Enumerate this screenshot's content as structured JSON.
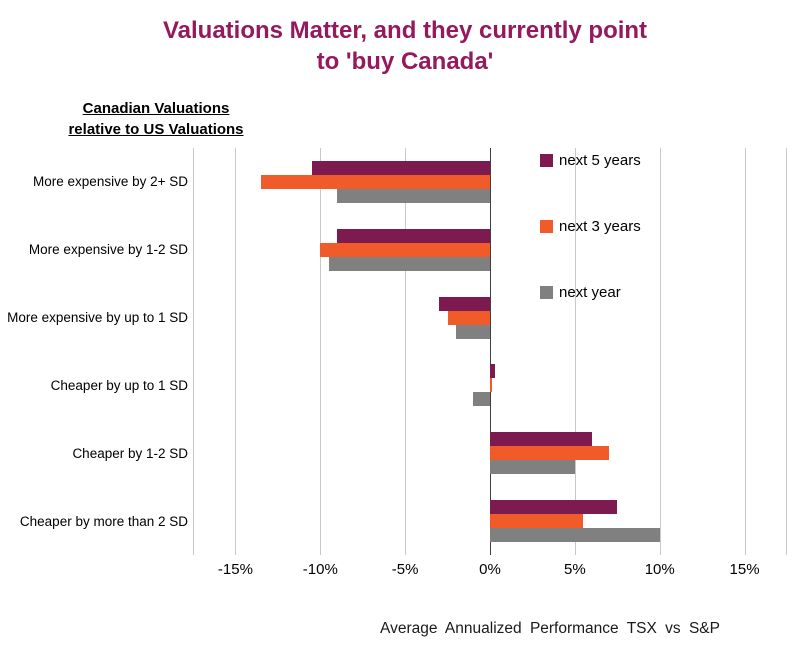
{
  "title": {
    "line1": "Valuations Matter, and they currently point",
    "line2": "to 'buy Canada'"
  },
  "axis_title": {
    "line1": "Canadian Valuations",
    "line2": "relative to US Valuations"
  },
  "colors": {
    "title": "#94195D",
    "series_next_5_years": "#7D1A50",
    "series_next_3_years": "#F15A29",
    "series_next_year": "#808080",
    "gridline": "#C8C8C8",
    "zero_line": "#404040"
  },
  "chart_data": {
    "type": "bar",
    "orientation": "horizontal",
    "title": "Valuations Matter, and they currently point to 'buy Canada'",
    "subtitle": "Canadian Valuations relative to US Valuations",
    "xlabel": "Average Annualized Performance TSX vs S&P",
    "ylabel": "",
    "xlim": [
      -17.5,
      17.5
    ],
    "grid": "vertical",
    "legend_position": "top-right-inside",
    "categories": [
      "More expensive by 2+ SD",
      "More expensive by 1-2 SD",
      "More expensive by up to 1 SD",
      "Cheaper by up to 1 SD",
      "Cheaper by 1-2 SD",
      "Cheaper by more than 2 SD"
    ],
    "series": [
      {
        "name": "next 5 years",
        "color": "#7D1A50",
        "values": [
          -10.5,
          -9,
          -3,
          0.3,
          6,
          7.5
        ]
      },
      {
        "name": "next 3 years",
        "color": "#F15A29",
        "values": [
          -13.5,
          -10,
          -2.5,
          0.1,
          7,
          5.5
        ]
      },
      {
        "name": "next year",
        "color": "#808080",
        "values": [
          -9,
          -9.5,
          -2,
          -1,
          5,
          10
        ]
      }
    ],
    "xticks": [
      {
        "value": -15,
        "label": "-15%"
      },
      {
        "value": -10,
        "label": "-10%"
      },
      {
        "value": -5,
        "label": "-5%"
      },
      {
        "value": 0,
        "label": "0%"
      },
      {
        "value": 5,
        "label": "5%"
      },
      {
        "value": 10,
        "label": "10%"
      },
      {
        "value": 15,
        "label": "15%"
      }
    ]
  }
}
